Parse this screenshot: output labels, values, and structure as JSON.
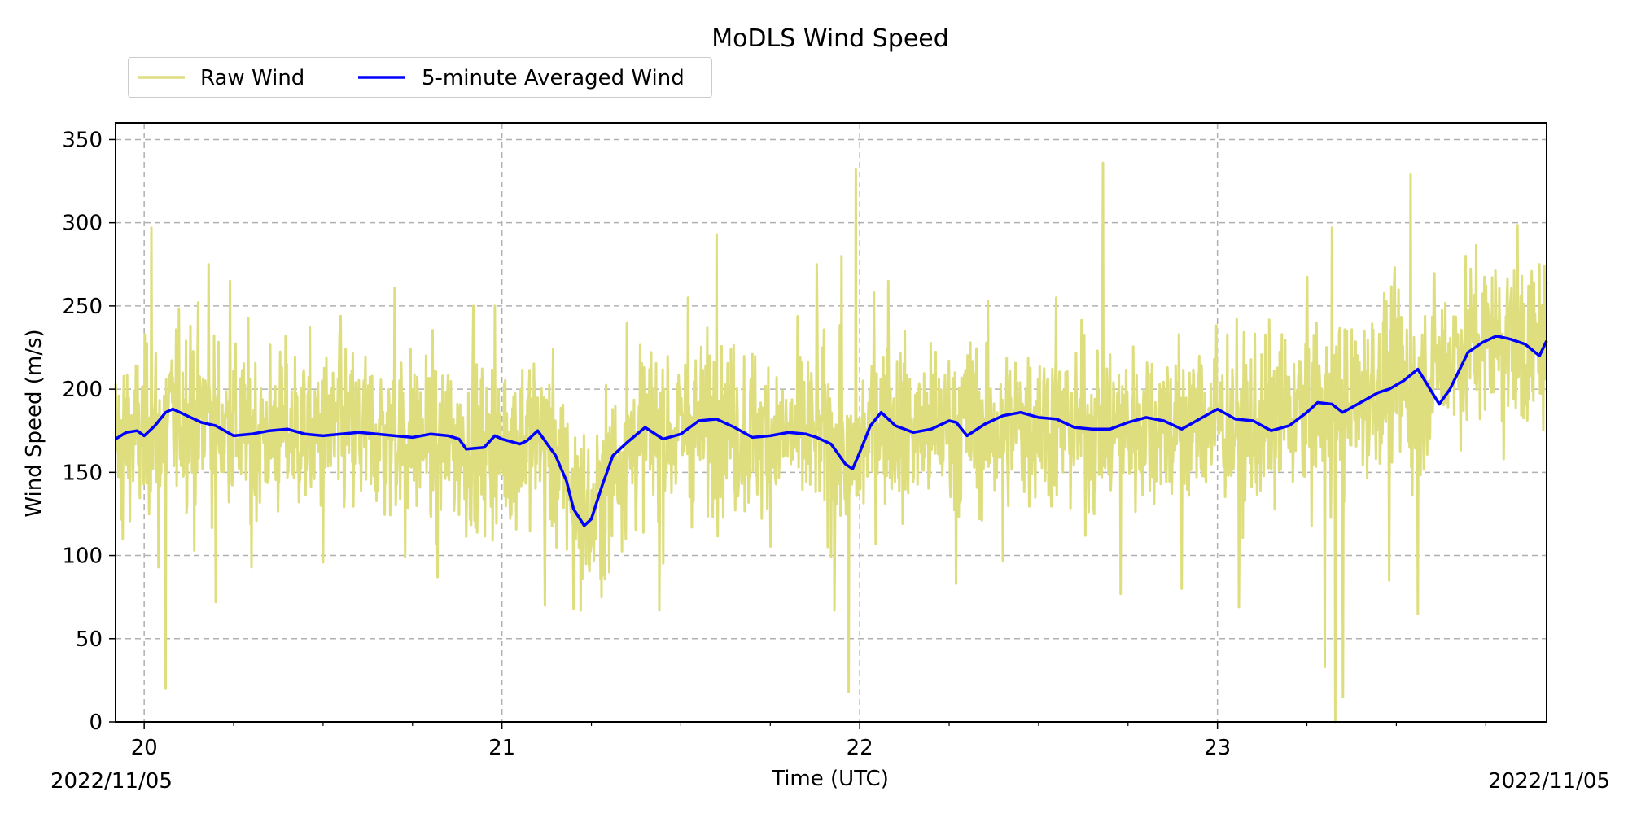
{
  "chart_data": {
    "type": "line",
    "title": "MoDLS Wind Speed",
    "xlabel": "Time (UTC)",
    "ylabel": "Wind Speed (m/s)",
    "xlim": [
      19.92,
      23.92
    ],
    "ylim": [
      0,
      360
    ],
    "x_major_ticks": [
      20,
      21,
      22,
      23
    ],
    "x_tick_labels": [
      "20",
      "21",
      "22",
      "23"
    ],
    "x_minor_step": 0.25,
    "y_ticks": [
      0,
      50,
      100,
      150,
      200,
      250,
      300,
      350
    ],
    "date_labels": {
      "left": "2022/11/05",
      "right": "2022/11/05"
    },
    "grid": true,
    "grid_style": "dashed",
    "legend": {
      "placement": "top-left outside",
      "columns": 2
    },
    "colors": {
      "raw": "#dede7e",
      "avg": "#0000ff",
      "grid": "#b0b0b0"
    },
    "series": [
      {
        "name": "Raw Wind",
        "style": "noisy",
        "noise_std": 25,
        "x": [
          19.92,
          20.0,
          20.1,
          20.2,
          20.3,
          20.4,
          20.5,
          20.6,
          20.7,
          20.8,
          20.9,
          21.0,
          21.1,
          21.2,
          21.25,
          21.3,
          21.4,
          21.5,
          21.6,
          21.7,
          21.8,
          21.9,
          21.97,
          22.05,
          22.1,
          22.2,
          22.3,
          22.4,
          22.5,
          22.6,
          22.7,
          22.8,
          22.9,
          23.0,
          23.1,
          23.2,
          23.3,
          23.4,
          23.5,
          23.55,
          23.6,
          23.7,
          23.8,
          23.9,
          23.92
        ],
        "values": [
          170,
          172,
          186,
          180,
          173,
          174,
          172,
          174,
          171,
          172,
          165,
          166,
          175,
          140,
          118,
          150,
          176,
          173,
          180,
          173,
          172,
          173,
          152,
          185,
          176,
          175,
          180,
          175,
          183,
          178,
          176,
          181,
          178,
          182,
          175,
          186,
          188,
          194,
          210,
          193,
          212,
          228,
          232,
          220,
          230
        ],
        "spikes": [
          {
            "x": 19.94,
            "y": 110
          },
          {
            "x": 20.02,
            "y": 297
          },
          {
            "x": 20.04,
            "y": 93
          },
          {
            "x": 20.06,
            "y": 20
          },
          {
            "x": 20.13,
            "y": 238
          },
          {
            "x": 20.14,
            "y": 103
          },
          {
            "x": 20.18,
            "y": 275
          },
          {
            "x": 20.2,
            "y": 72
          },
          {
            "x": 20.24,
            "y": 265
          },
          {
            "x": 20.3,
            "y": 93
          },
          {
            "x": 20.5,
            "y": 96
          },
          {
            "x": 20.55,
            "y": 244
          },
          {
            "x": 20.7,
            "y": 261
          },
          {
            "x": 20.73,
            "y": 99
          },
          {
            "x": 20.82,
            "y": 87
          },
          {
            "x": 20.92,
            "y": 250
          },
          {
            "x": 20.98,
            "y": 250
          },
          {
            "x": 21.12,
            "y": 70
          },
          {
            "x": 21.2,
            "y": 68
          },
          {
            "x": 21.22,
            "y": 67
          },
          {
            "x": 21.3,
            "y": 90
          },
          {
            "x": 21.35,
            "y": 240
          },
          {
            "x": 21.44,
            "y": 67
          },
          {
            "x": 21.52,
            "y": 255
          },
          {
            "x": 21.6,
            "y": 293
          },
          {
            "x": 21.88,
            "y": 275
          },
          {
            "x": 21.93,
            "y": 67
          },
          {
            "x": 21.95,
            "y": 280
          },
          {
            "x": 21.97,
            "y": 18
          },
          {
            "x": 21.99,
            "y": 332
          },
          {
            "x": 22.04,
            "y": 258
          },
          {
            "x": 22.08,
            "y": 265
          },
          {
            "x": 22.27,
            "y": 83
          },
          {
            "x": 22.4,
            "y": 97
          },
          {
            "x": 22.55,
            "y": 255
          },
          {
            "x": 22.68,
            "y": 336
          },
          {
            "x": 22.73,
            "y": 77
          },
          {
            "x": 22.9,
            "y": 80
          },
          {
            "x": 23.06,
            "y": 69
          },
          {
            "x": 23.25,
            "y": 250
          },
          {
            "x": 23.3,
            "y": 33
          },
          {
            "x": 23.32,
            "y": 297
          },
          {
            "x": 23.33,
            "y": 0
          },
          {
            "x": 23.35,
            "y": 15
          },
          {
            "x": 23.48,
            "y": 85
          },
          {
            "x": 23.54,
            "y": 329
          },
          {
            "x": 23.56,
            "y": 65
          },
          {
            "x": 23.75,
            "y": 262
          },
          {
            "x": 23.8,
            "y": 158
          },
          {
            "x": 23.85,
            "y": 268
          },
          {
            "x": 23.9,
            "y": 275
          }
        ]
      },
      {
        "name": "5-minute Averaged Wind",
        "style": "smooth",
        "x": [
          19.92,
          19.95,
          19.98,
          20.0,
          20.03,
          20.06,
          20.08,
          20.1,
          20.13,
          20.16,
          20.2,
          20.25,
          20.3,
          20.35,
          20.4,
          20.45,
          20.5,
          20.55,
          20.6,
          20.65,
          20.7,
          20.75,
          20.8,
          20.85,
          20.88,
          20.9,
          20.95,
          20.98,
          21.0,
          21.05,
          21.07,
          21.1,
          21.15,
          21.18,
          21.2,
          21.23,
          21.25,
          21.28,
          21.31,
          21.35,
          21.4,
          21.45,
          21.5,
          21.55,
          21.6,
          21.65,
          21.7,
          21.75,
          21.8,
          21.85,
          21.88,
          21.92,
          21.96,
          21.98,
          22.0,
          22.03,
          22.06,
          22.1,
          22.15,
          22.2,
          22.25,
          22.27,
          22.3,
          22.35,
          22.4,
          22.45,
          22.5,
          22.55,
          22.6,
          22.65,
          22.7,
          22.75,
          22.8,
          22.85,
          22.9,
          22.95,
          23.0,
          23.05,
          23.1,
          23.15,
          23.2,
          23.25,
          23.28,
          23.32,
          23.35,
          23.4,
          23.45,
          23.48,
          23.52,
          23.56,
          23.58,
          23.62,
          23.65,
          23.7,
          23.74,
          23.78,
          23.82,
          23.86,
          23.9,
          23.92
        ],
        "values": [
          170,
          174,
          175,
          172,
          178,
          186,
          188,
          186,
          183,
          180,
          178,
          172,
          173,
          175,
          176,
          173,
          172,
          173,
          174,
          173,
          172,
          171,
          173,
          172,
          170,
          164,
          165,
          172,
          170,
          167,
          169,
          175,
          160,
          145,
          128,
          118,
          122,
          142,
          160,
          168,
          177,
          170,
          173,
          181,
          182,
          177,
          171,
          172,
          174,
          173,
          171,
          167,
          155,
          152,
          162,
          178,
          186,
          178,
          174,
          176,
          181,
          180,
          172,
          179,
          184,
          186,
          183,
          182,
          177,
          176,
          176,
          180,
          183,
          181,
          176,
          182,
          188,
          182,
          181,
          175,
          178,
          186,
          192,
          191,
          186,
          192,
          198,
          200,
          205,
          212,
          205,
          191,
          200,
          222,
          228,
          232,
          230,
          227,
          220,
          229
        ]
      }
    ]
  }
}
